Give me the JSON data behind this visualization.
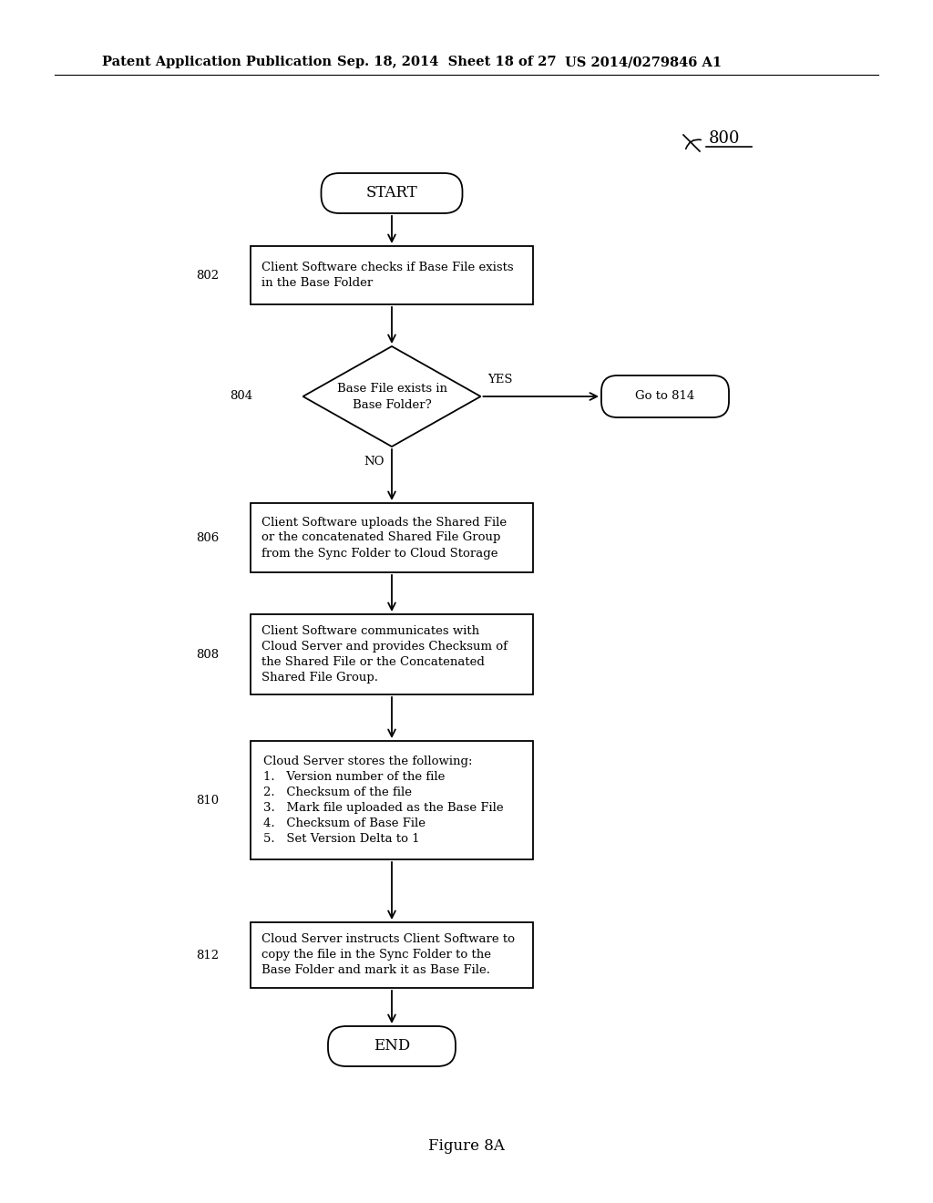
{
  "bg_color": "#ffffff",
  "header_left": "Patent Application Publication",
  "header_mid": "Sep. 18, 2014  Sheet 18 of 27",
  "header_right": "US 2014/0279846 A1",
  "figure_label": "Figure 8A",
  "ref_number": "800",
  "start_text": "START",
  "end_text": "END",
  "box802_label": "802",
  "box802_text": "Client Software checks if Base File exists\nin the Base Folder",
  "box804_label": "804",
  "box804_text": "Base File exists in\nBase Folder?",
  "goto814_text": "Go to 814",
  "yes_text": "YES",
  "no_text": "NO",
  "box806_label": "806",
  "box806_text": "Client Software uploads the Shared File\nor the concatenated Shared File Group\nfrom the Sync Folder to Cloud Storage",
  "box808_label": "808",
  "box808_text": "Client Software communicates with\nCloud Server and provides Checksum of\nthe Shared File or the Concatenated\nShared File Group.",
  "box810_label": "810",
  "box810_text": "Cloud Server stores the following:\n1.   Version number of the file\n2.   Checksum of the file\n3.   Mark file uploaded as the Base File\n4.   Checksum of Base File\n5.   Set Version Delta to 1",
  "box812_label": "812",
  "box812_text": "Cloud Server instructs Client Software to\ncopy the file in the Sync Folder to the\nBase Folder and mark it as Base File.",
  "lw": 1.3,
  "fontsize": 9.5,
  "header_fontsize": 10.5
}
